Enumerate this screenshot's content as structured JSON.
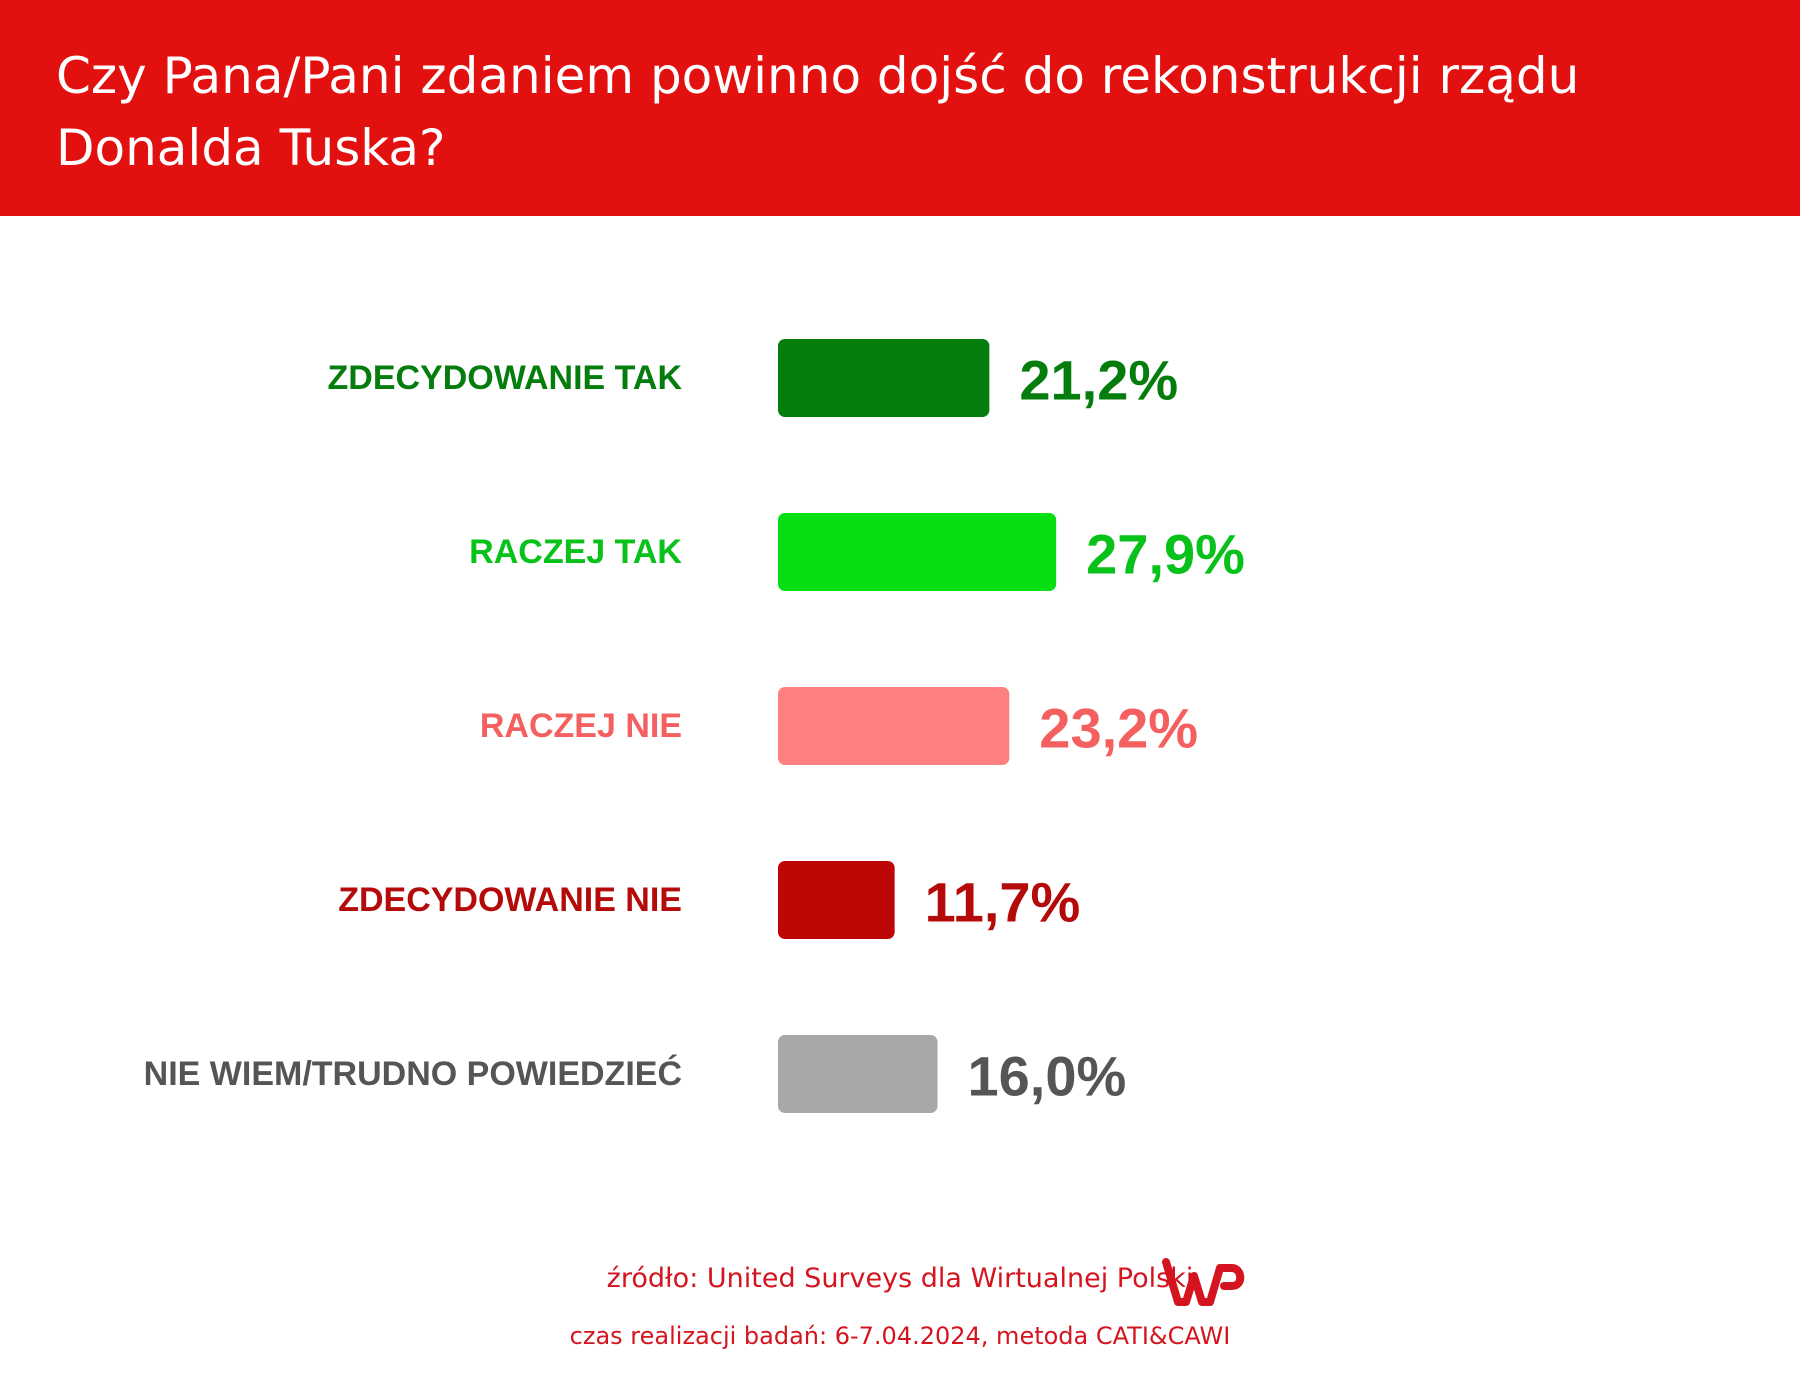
{
  "header": {
    "title": "Czy Pana/Pani zdaniem powinno dojść do rekonstrukcji rządu Donalda Tuska?"
  },
  "chart_data": {
    "type": "bar",
    "orientation": "horizontal",
    "title": "Czy Pana/Pani zdaniem powinno dojść do rekonstrukcji rządu Donalda Tuska?",
    "categories": [
      "ZDECYDOWANIE TAK",
      "RACZEJ TAK",
      "RACZEJ NIE",
      "ZDECYDOWANIE NIE",
      "NIE WIEM/TRUDNO POWIEDZIEĆ"
    ],
    "values": [
      21.2,
      27.9,
      23.2,
      11.7,
      16.0
    ],
    "value_labels": [
      "21,2%",
      "27,9%",
      "23,2%",
      "11,7%",
      "16,0%"
    ],
    "bar_colors": [
      "#057d0d",
      "#06de14",
      "#fe8080",
      "#bd0606",
      "#a8a8a8"
    ],
    "label_colors": [
      "#057d0d",
      "#08c11a",
      "#f46060",
      "#b40a0a",
      "#555555"
    ],
    "unit": "%",
    "grid": false,
    "legend": "none",
    "xlim": [
      0,
      100
    ]
  },
  "footer": {
    "source": "źródło: United Surveys dla Wirtualnej Polski",
    "details": "czas realizacji badań: 6-7.04.2024, metoda CATI&CAWI",
    "logo_text": "WP",
    "logo_color": "#d4141f"
  }
}
